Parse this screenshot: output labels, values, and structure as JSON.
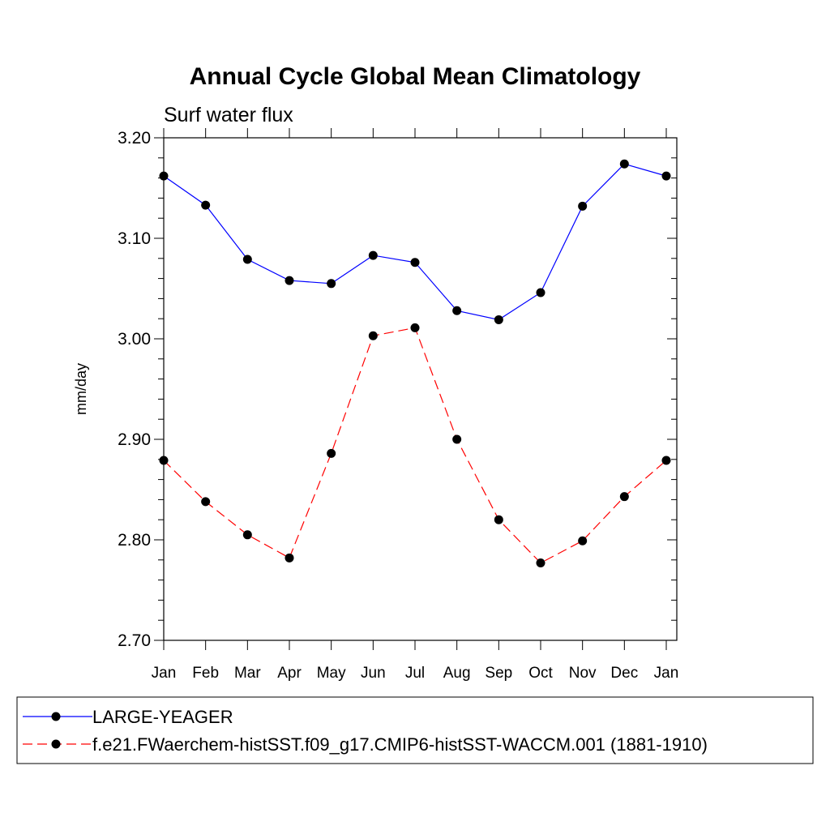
{
  "chart_data": {
    "type": "line",
    "title": "Annual Cycle Global Mean Climatology",
    "subtitle": "Surf water flux",
    "xlabel": "",
    "ylabel": "mm/day",
    "categories": [
      "Jan",
      "Feb",
      "Mar",
      "Apr",
      "May",
      "Jun",
      "Jul",
      "Aug",
      "Sep",
      "Oct",
      "Nov",
      "Dec",
      "Jan"
    ],
    "ylim": [
      2.7,
      3.2
    ],
    "yticks": [
      "2.70",
      "2.80",
      "2.90",
      "3.00",
      "3.10",
      "3.20"
    ],
    "grid": false,
    "legend_position": "bottom",
    "series": [
      {
        "name": "LARGE-YEAGER",
        "color": "#0000ff",
        "line_style": "solid",
        "marker": "filled-circle",
        "values": [
          3.162,
          3.133,
          3.079,
          3.058,
          3.055,
          3.083,
          3.076,
          3.028,
          3.019,
          3.046,
          3.132,
          3.174,
          3.162
        ]
      },
      {
        "name": "f.e21.FWaerchem-histSST.f09_g17.CMIP6-histSST-WACCM.001 (1881-1910)",
        "color": "#ff0000",
        "line_style": "dashed",
        "marker": "filled-circle",
        "values": [
          2.879,
          2.838,
          2.805,
          2.782,
          2.886,
          3.003,
          3.011,
          2.9,
          2.82,
          2.777,
          2.799,
          2.843,
          2.879
        ]
      }
    ]
  }
}
